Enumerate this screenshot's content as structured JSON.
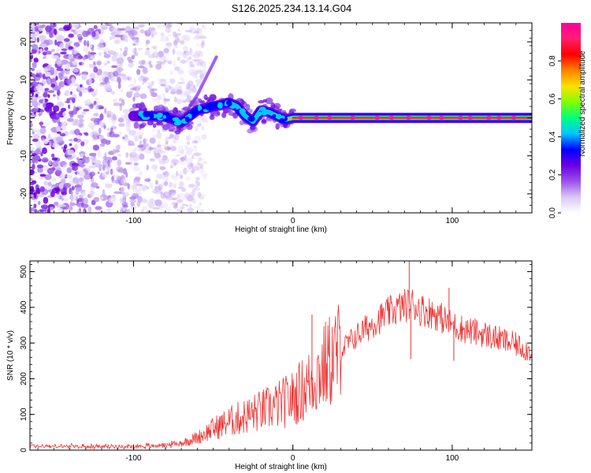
{
  "title": "S126.2025.234.13.14.G04",
  "chart_data": [
    {
      "type": "heatmap",
      "name": "spectrogram",
      "xlabel": "Height of straight line (km)",
      "ylabel": "Frequency (Hz)",
      "xlim": [
        -165,
        150
      ],
      "ylim": [
        -25,
        25
      ],
      "x_ticks": [
        -100,
        0,
        100
      ],
      "x_tick_labels": [
        "-100",
        "0",
        "100"
      ],
      "y_ticks": [
        -20,
        -10,
        0,
        10,
        20
      ],
      "y_tick_labels": [
        "-20",
        "-10",
        "0",
        "10",
        "20"
      ],
      "colorbar": {
        "label": "Normalized spectral amplitude",
        "range": [
          0,
          1
        ],
        "ticks": [
          0.0,
          0.2,
          0.4,
          0.6,
          0.8
        ],
        "tick_labels": [
          "0.0",
          "0.2",
          "0.4",
          "0.6",
          "0.8"
        ],
        "colormap": [
          "#ffffff",
          "#d8c8f4",
          "#9b50e8",
          "#6a00e0",
          "#0000ff",
          "#00c8ff",
          "#00ff80",
          "#80ff00",
          "#ffe000",
          "#ff8000",
          "#ff0000",
          "#ff1e6e",
          "#ff00a0"
        ]
      },
      "ridge": {
        "x": [
          -100,
          -90,
          -80,
          -70,
          -60,
          -50,
          -40,
          -35,
          -30,
          -25,
          -20,
          -15,
          -10,
          -5,
          0,
          10,
          50,
          100,
          150
        ],
        "freq_hz": [
          0.5,
          0.5,
          0.3,
          -1.2,
          2,
          3,
          4,
          3,
          0.5,
          -1,
          2,
          1.5,
          0.5,
          -0.5,
          0,
          0,
          0,
          0,
          0
        ]
      }
    },
    {
      "type": "line",
      "name": "snr",
      "xlabel": "Height of straight line (km)",
      "ylabel": "SNR (10 * v/v)",
      "xlim": [
        -165,
        150
      ],
      "ylim": [
        0,
        530
      ],
      "x_ticks": [
        -100,
        0,
        100
      ],
      "x_tick_labels": [
        "-100",
        "0",
        "100"
      ],
      "y_ticks": [
        0,
        100,
        200,
        300,
        400,
        500
      ],
      "y_tick_labels": [
        "0",
        "100",
        "200",
        "300",
        "400",
        "500"
      ],
      "series": [
        {
          "name": "SNR",
          "color": "#ee3333",
          "envelope_x": [
            -165,
            -140,
            -110,
            -90,
            -80,
            -70,
            -60,
            -50,
            -40,
            -30,
            -20,
            -10,
            0,
            10,
            20,
            30,
            40,
            50,
            60,
            70,
            75,
            80,
            90,
            100,
            110,
            120,
            130,
            140,
            150
          ],
          "envelope_y": [
            12,
            10,
            10,
            12,
            14,
            20,
            35,
            60,
            80,
            95,
            110,
            125,
            145,
            185,
            235,
            280,
            320,
            355,
            385,
            405,
            410,
            395,
            380,
            350,
            335,
            325,
            310,
            295,
            275
          ],
          "spikes": [
            {
              "x": 73,
              "y": 530
            },
            {
              "x": 74,
              "y": 255
            },
            {
              "x": 98,
              "y": 455
            },
            {
              "x": 101,
              "y": 250
            },
            {
              "x": 12,
              "y": 380
            }
          ]
        }
      ]
    }
  ]
}
